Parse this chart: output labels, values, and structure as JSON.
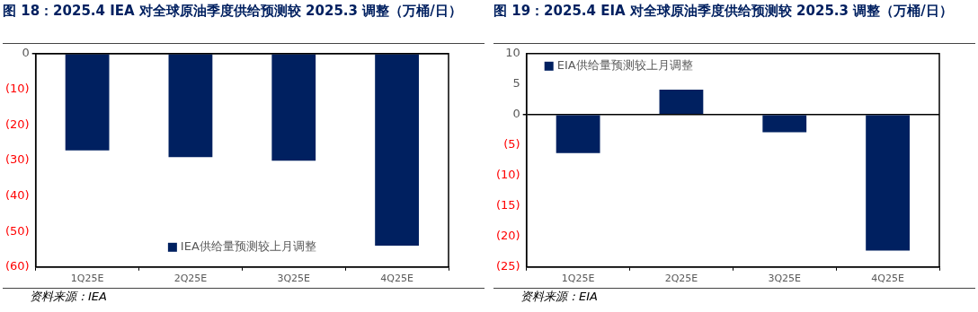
{
  "chart_data": [
    {
      "type": "bar",
      "title": "图 18：2025.4 IEA 对全球原油季度供给预测较 2025.3 调整（万桶/日）",
      "categories": [
        "1Q25E",
        "2Q25E",
        "3Q25E",
        "4Q25E"
      ],
      "series": [
        {
          "name": "IEA供给量预测较上月调整",
          "color": "#002060",
          "values": [
            -27.2,
            -29.1,
            -30.1,
            -54
          ]
        }
      ],
      "ylim": [
        -60,
        0
      ],
      "yticks": [
        {
          "value": -60,
          "label": "(60)"
        },
        {
          "value": -50,
          "label": "(50)"
        },
        {
          "value": -40,
          "label": "(40)"
        },
        {
          "value": -30,
          "label": "(30)"
        },
        {
          "value": -20,
          "label": "(20)"
        },
        {
          "value": -10,
          "label": "(10)"
        },
        0
      ],
      "legend": "bottom",
      "annotations": [
        "资料来源：IEA"
      ]
    },
    {
      "type": "bar",
      "title": "图 19：2025.4 EIA 对全球原油季度供给预测较 2025.3 调整（万桶/日）",
      "categories": [
        "1Q25E",
        "2Q25E",
        "3Q25E",
        "4Q25E"
      ],
      "series": [
        {
          "name": "EIA供给量预测较上月调整",
          "color": "#002060",
          "values": [
            -6.3,
            4.1,
            -2.9,
            -22.3
          ]
        }
      ],
      "ylim": [
        -25,
        10
      ],
      "yticks": [
        {
          "value": -25,
          "label": "(25)"
        },
        {
          "value": -20,
          "label": "(20)"
        },
        {
          "value": -15,
          "label": "(15)"
        },
        {
          "value": -10,
          "label": "(10)"
        },
        {
          "value": -5,
          "label": "(5)"
        },
        0,
        5,
        10
      ],
      "legend": "top left",
      "annotations": [
        "资料来源：EIA"
      ]
    }
  ]
}
